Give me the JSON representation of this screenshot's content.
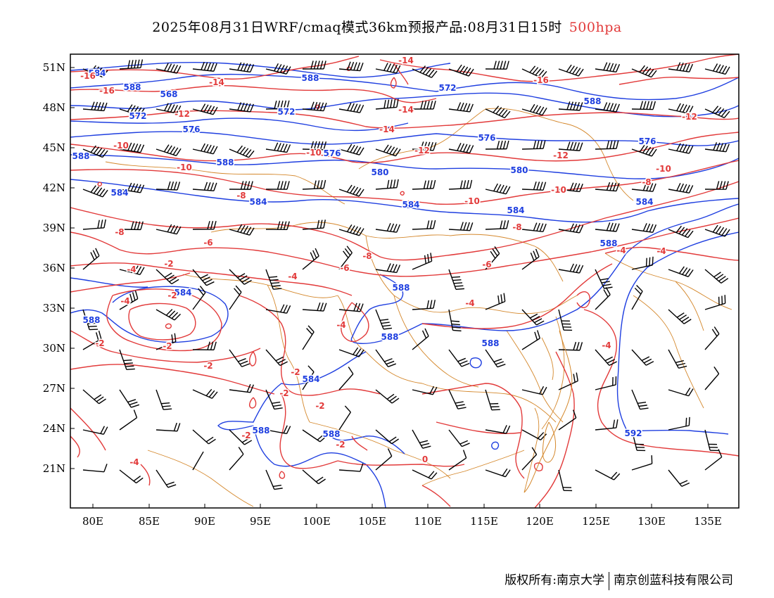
{
  "header": {
    "title": "2025年08月31日WRF/cmaq模式36km预报产品:08月31日15时",
    "level": "500hpa"
  },
  "axes": {
    "lat_labels": [
      "51N",
      "48N",
      "45N",
      "42N",
      "39N",
      "36N",
      "33N",
      "30N",
      "27N",
      "24N",
      "21N"
    ],
    "lon_labels": [
      "80E",
      "85E",
      "90E",
      "95E",
      "100E",
      "105E",
      "110E",
      "115E",
      "120E",
      "125E",
      "130E",
      "135E"
    ]
  },
  "contours": {
    "height_labels": [
      "588",
      "584",
      "588",
      "572",
      "568",
      "588",
      "572",
      "588",
      "572",
      "576",
      "576",
      "576",
      "588",
      "580",
      "580",
      "576",
      "584",
      "584",
      "584",
      "584",
      "584",
      "584",
      "588",
      "588",
      "588",
      "588",
      "584",
      "588",
      "588",
      "588",
      "592"
    ],
    "temperature_labels": [
      "-16",
      "-16",
      "-14",
      "-14",
      "-14",
      "-14",
      "-16",
      "-12",
      "-12",
      "-12",
      "-12",
      "-10",
      "-10",
      "-10",
      "-10",
      "-10",
      "-10",
      "-8",
      "-8",
      "-8",
      "-8",
      "-8",
      "-6",
      "-6",
      "-6",
      "-4",
      "-4",
      "-4",
      "-4",
      "-4",
      "-4",
      "-4",
      "-2",
      "-2",
      "-2",
      "-2",
      "-2",
      "-2",
      "-2",
      "-2",
      "-2",
      "-2",
      "0",
      "-4",
      "-4"
    ]
  },
  "colors": {
    "height_contour": "#1f3fe0",
    "temperature_contour": "#e23a3a",
    "boundary": "#d4872b",
    "wind_barb": "#000000",
    "level_text": "#e23a3a"
  },
  "footer": {
    "copyright": "版权所有:南京大学",
    "company": "南京创蓝科技有限公司"
  }
}
